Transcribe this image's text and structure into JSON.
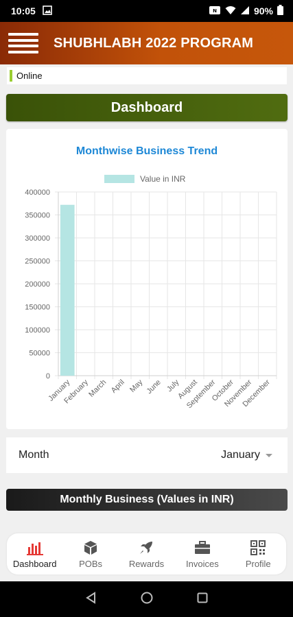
{
  "status_bar": {
    "time": "10:05",
    "battery": "90%"
  },
  "app_bar": {
    "title": "SHUBHLABH 2022 PROGRAM",
    "menu_icon": "hamburger-icon"
  },
  "online_status": {
    "label": "Online",
    "indicator_color": "#9acd32"
  },
  "dashboard_header": {
    "label": "Dashboard"
  },
  "chart_data": {
    "type": "bar",
    "title": "Monthwise Business Trend",
    "legend": [
      "Value in INR"
    ],
    "legend_position": "top",
    "categories": [
      "January",
      "February",
      "March",
      "April",
      "May",
      "June",
      "July",
      "August",
      "September",
      "October",
      "November",
      "December"
    ],
    "series": [
      {
        "name": "Value in INR",
        "values": [
          372000,
          0,
          0,
          0,
          0,
          0,
          0,
          0,
          0,
          0,
          0,
          0
        ],
        "color": "#b5e5e3"
      }
    ],
    "y_ticks": [
      "400000",
      "350000",
      "300000",
      "250000",
      "200000",
      "150000",
      "100000",
      "50000",
      "0"
    ],
    "ylim": [
      0,
      400000
    ],
    "grid": true,
    "xlabel": "",
    "ylabel": ""
  },
  "month_filter": {
    "label": "Month",
    "selected": "January"
  },
  "monthly_business_header": {
    "label": "Monthly Business (Values in INR)"
  },
  "bottom_nav": {
    "items": [
      {
        "label": "Dashboard",
        "icon": "bar-chart-icon",
        "active": true
      },
      {
        "label": "POBs",
        "icon": "cube-icon",
        "active": false
      },
      {
        "label": "Rewards",
        "icon": "rocket-icon",
        "active": false
      },
      {
        "label": "Invoices",
        "icon": "briefcase-icon",
        "active": false
      },
      {
        "label": "Profile",
        "icon": "qr-code-icon",
        "active": false
      }
    ]
  },
  "colors": {
    "accent": "#1e88d6",
    "app_bar": "#c25209",
    "dashboard_header": "#506c10",
    "active_icon": "#e53935"
  }
}
